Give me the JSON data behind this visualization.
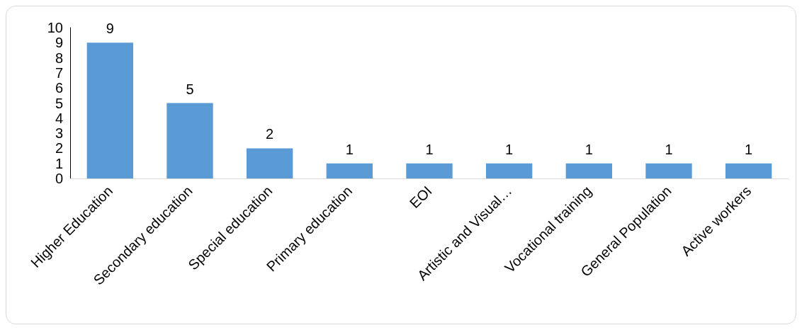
{
  "chart_data": {
    "type": "bar",
    "categories": [
      "Higher Education",
      "Secondary education",
      "Special education",
      "Primary education",
      "EOI",
      "Artistic and Visual…",
      "Vocational training",
      "General Population",
      "Active workers"
    ],
    "values": [
      9,
      5,
      2,
      1,
      1,
      1,
      1,
      1,
      1
    ],
    "color": "#5b9bd5",
    "ylim": [
      0,
      10
    ],
    "yticks": [
      0,
      1,
      2,
      3,
      4,
      5,
      6,
      7,
      8,
      9,
      10
    ],
    "grid": false,
    "data_labels": true
  }
}
